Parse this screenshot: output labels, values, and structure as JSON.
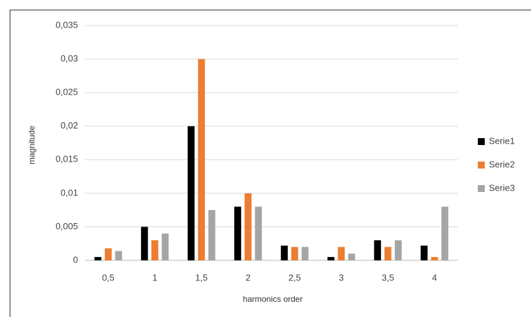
{
  "chart_data": {
    "type": "bar",
    "x_label": "harmonics order",
    "y_label": "magnitude",
    "categories": [
      "0,5",
      "1",
      "1,5",
      "2",
      "2,5",
      "3",
      "3,5",
      "4"
    ],
    "series": [
      {
        "name": "Serie1",
        "color": "#000000",
        "values": [
          0.0005,
          0.005,
          0.02,
          0.008,
          0.0022,
          0.0005,
          0.003,
          0.0022
        ]
      },
      {
        "name": "Serie2",
        "color": "#ed7d31",
        "values": [
          0.0018,
          0.003,
          0.03,
          0.01,
          0.002,
          0.002,
          0.002,
          0.0005
        ]
      },
      {
        "name": "Serie3",
        "color": "#a5a5a5",
        "values": [
          0.0014,
          0.004,
          0.0075,
          0.008,
          0.002,
          0.001,
          0.003,
          0.008
        ]
      }
    ],
    "ylim": [
      0,
      0.035
    ],
    "yticks": [
      0,
      {
        "value": 0.005,
        "label": "0,005"
      },
      {
        "value": 0.01,
        "label": "0,01"
      },
      {
        "value": 0.015,
        "label": "0,015"
      },
      {
        "value": 0.02,
        "label": "0,02"
      },
      {
        "value": 0.025,
        "label": "0,025"
      },
      {
        "value": 0.03,
        "label": "0,03"
      },
      {
        "value": 0.035,
        "label": "0,035"
      }
    ],
    "grid": true,
    "legend": "right"
  }
}
